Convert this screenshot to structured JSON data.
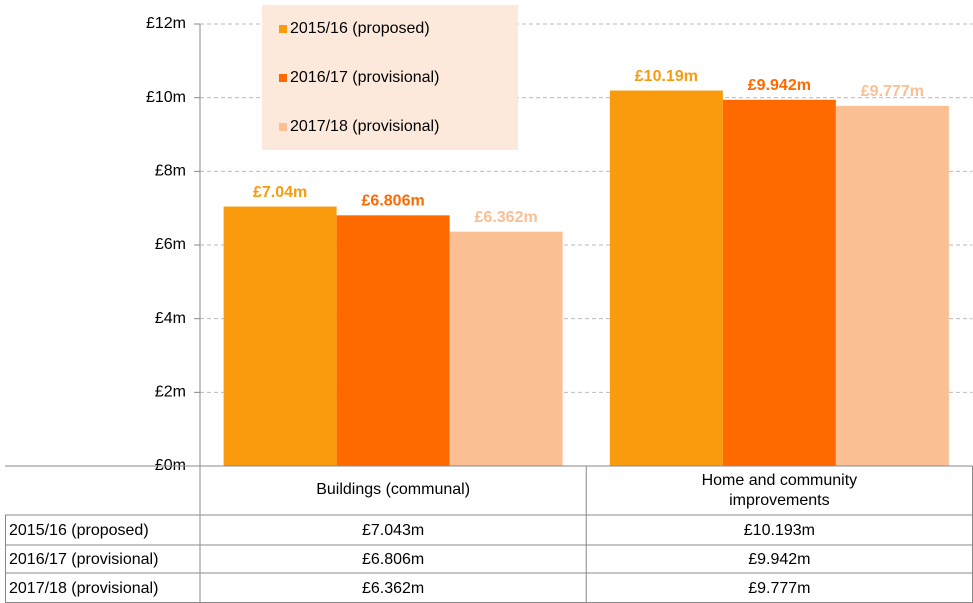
{
  "chart_data": {
    "type": "bar",
    "categories": [
      "Buildings (communal)",
      "Home and community improvements"
    ],
    "series": [
      {
        "name": "2015/16 (proposed)",
        "color": "#f99b0c",
        "values": [
          7.043,
          10.193
        ],
        "value_labels": [
          "£7.04m",
          "£10.19m"
        ],
        "table_labels": [
          "£7.043m",
          "£10.193m"
        ]
      },
      {
        "name": "2016/17 (provisional)",
        "color": "#ff6a00",
        "values": [
          6.806,
          9.942
        ],
        "value_labels": [
          "£6.806m",
          "£9.942m"
        ],
        "table_labels": [
          "£6.806m",
          "£9.942m"
        ]
      },
      {
        "name": "2017/18 (provisional)",
        "color": "#fabf92",
        "values": [
          6.362,
          9.777
        ],
        "value_labels": [
          "£6.362m",
          "£9.777m"
        ],
        "table_labels": [
          "£6.362m",
          "£9.777m"
        ]
      }
    ],
    "ylim": [
      0,
      12
    ],
    "yticks": [
      {
        "value": 0,
        "label": "£0m"
      },
      {
        "value": 2,
        "label": "£2m"
      },
      {
        "value": 4,
        "label": "£4m"
      },
      {
        "value": 6,
        "label": "£6m"
      },
      {
        "value": 8,
        "label": "£8m"
      },
      {
        "value": 10,
        "label": "£10m"
      },
      {
        "value": 12,
        "label": "£12m"
      }
    ],
    "grid": true,
    "legend": "top-left"
  }
}
